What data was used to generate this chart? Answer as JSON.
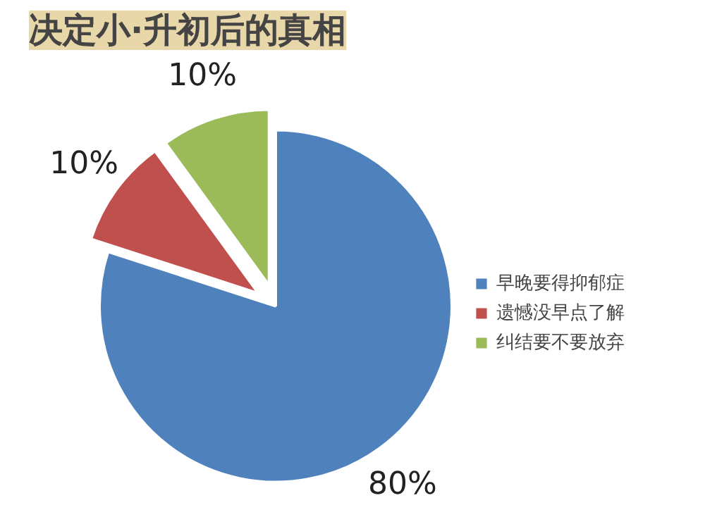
{
  "chart_data": {
    "type": "pie",
    "title": "决定小·升初后的真相",
    "categories": [
      "早晚要得抑郁症",
      "遗憾没早点了解",
      "纠结要不要放弃"
    ],
    "values": [
      80,
      10,
      10
    ],
    "colors": [
      "#4f81bd",
      "#c0504d",
      "#9bbb59"
    ],
    "value_labels": [
      "80%",
      "10%",
      "10%"
    ],
    "legend": "right"
  }
}
